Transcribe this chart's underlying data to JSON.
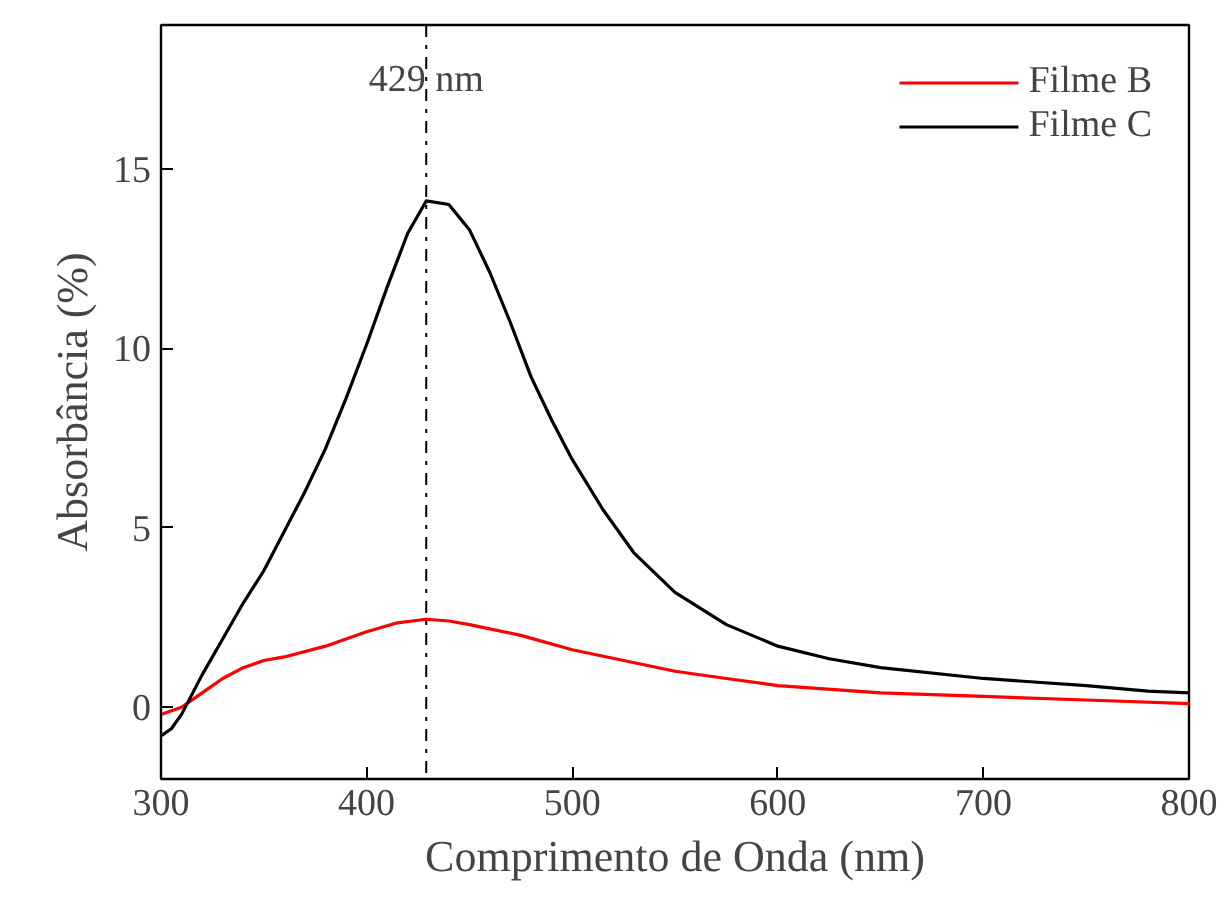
{
  "chart_data": {
    "type": "line",
    "xlabel": "Comprimento de Onda (nm)",
    "ylabel": "Absorbância (%)",
    "xlim": [
      300,
      800
    ],
    "ylim": [
      -2,
      19
    ],
    "xticks": [
      300,
      400,
      500,
      600,
      700,
      800
    ],
    "yticks": [
      0,
      5,
      10,
      15
    ],
    "grid": false,
    "legend": "top right",
    "line_style": "solid",
    "marker": "none",
    "ref_lines": [
      {
        "axis": "x",
        "value": 429,
        "label": "429 nm",
        "color": "#000000",
        "line_style": "dashdot"
      }
    ],
    "series": [
      {
        "name": "Filme B",
        "color": "#ff0000",
        "x": [
          300,
          310,
          320,
          330,
          340,
          350,
          360,
          380,
          400,
          415,
          429,
          440,
          450,
          475,
          500,
          525,
          550,
          575,
          600,
          650,
          700,
          750,
          800
        ],
        "values": [
          -0.2,
          0.0,
          0.4,
          0.8,
          1.1,
          1.3,
          1.4,
          1.7,
          2.1,
          2.35,
          2.45,
          2.4,
          2.3,
          2.0,
          1.6,
          1.3,
          1.0,
          0.8,
          0.6,
          0.4,
          0.3,
          0.2,
          0.1
        ]
      },
      {
        "name": "Filme C",
        "color": "#000000",
        "x": [
          300,
          305,
          310,
          320,
          330,
          340,
          350,
          360,
          370,
          380,
          390,
          400,
          410,
          420,
          429,
          440,
          450,
          460,
          470,
          480,
          490,
          500,
          515,
          530,
          550,
          575,
          600,
          625,
          650,
          700,
          750,
          780,
          800
        ],
        "values": [
          -0.8,
          -0.6,
          -0.2,
          0.9,
          1.9,
          2.9,
          3.8,
          4.9,
          6.0,
          7.2,
          8.6,
          10.1,
          11.7,
          13.2,
          14.1,
          14.0,
          13.3,
          12.1,
          10.7,
          9.2,
          8.0,
          6.9,
          5.5,
          4.3,
          3.2,
          2.3,
          1.7,
          1.35,
          1.1,
          0.8,
          0.6,
          0.45,
          0.4
        ]
      }
    ]
  }
}
